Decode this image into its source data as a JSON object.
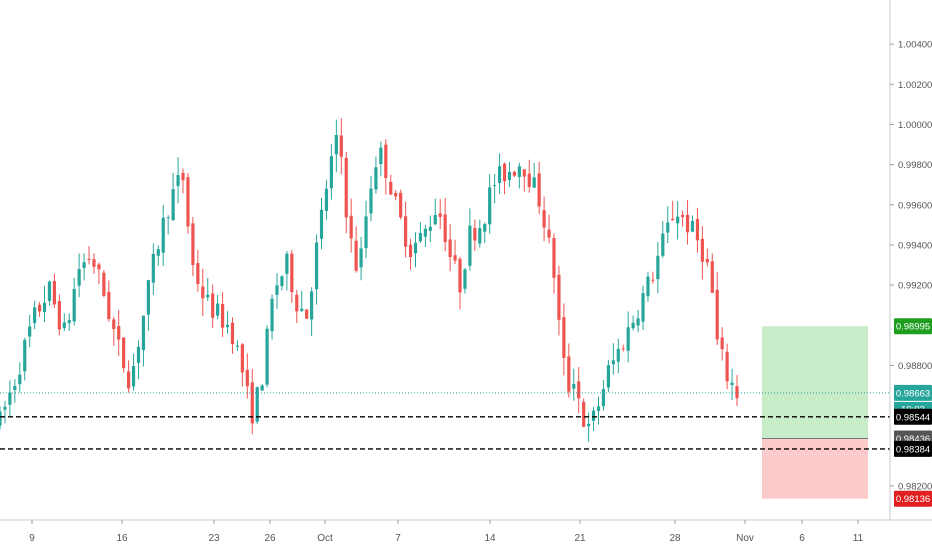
{
  "chart_data": {
    "type": "candlestick",
    "instrument_note": "",
    "y_axis": {
      "ticks": [
        "1.00400",
        "1.00200",
        "1.00000",
        "0.99800",
        "0.99600",
        "0.99400",
        "0.99200",
        "0.98800",
        "0.98200"
      ],
      "tick_values": [
        1.004,
        1.002,
        1.0,
        0.998,
        0.996,
        0.994,
        0.992,
        0.988,
        0.982
      ],
      "range": [
        0.9804,
        1.0057
      ]
    },
    "x_axis": {
      "labels": [
        "9",
        "16",
        "23",
        "26",
        "Oct",
        "7",
        "14",
        "21",
        "28",
        "Nov",
        "6",
        "11"
      ]
    },
    "price_labels": {
      "take_profit": "0.98995",
      "current": "0.98663",
      "countdown": "19:02",
      "level_1": "0.98544",
      "entry": "0.98436",
      "level_2": "0.98384",
      "stop_loss": "0.98136"
    },
    "levels": {
      "take_profit": 0.98995,
      "current": 0.98663,
      "level_1": 0.98544,
      "entry": 0.98436,
      "level_2": 0.98384,
      "stop_loss": 0.98136
    },
    "candle_count": 150,
    "price_path": [
      [
        0,
        0.9852
      ],
      [
        5,
        0.9875
      ],
      [
        10,
        0.9902
      ],
      [
        15,
        0.9918
      ],
      [
        20,
        0.9895
      ],
      [
        24,
        0.9928
      ],
      [
        28,
        0.9935
      ],
      [
        32,
        0.9915
      ],
      [
        36,
        0.989
      ],
      [
        40,
        0.9872
      ],
      [
        44,
        0.9905
      ],
      [
        48,
        0.9938
      ],
      [
        52,
        0.9962
      ],
      [
        56,
        0.9975
      ],
      [
        59,
        0.993
      ],
      [
        63,
        0.9912
      ],
      [
        67,
        0.9905
      ],
      [
        71,
        0.9898
      ],
      [
        74,
        0.988
      ],
      [
        77,
        0.9855
      ],
      [
        80,
        0.987
      ],
      [
        84,
        0.9918
      ],
      [
        88,
        0.993
      ],
      [
        91,
        0.9912
      ],
      [
        94,
        0.9905
      ],
      [
        98,
        0.9948
      ],
      [
        101,
        0.9978
      ],
      [
        104,
        0.9995
      ],
      [
        107,
        0.9945
      ],
      [
        110,
        0.9925
      ],
      [
        113,
        0.9965
      ],
      [
        116,
        0.9988
      ],
      [
        119,
        0.9975
      ],
      [
        122,
        0.9955
      ],
      [
        126,
        0.9938
      ],
      [
        130,
        0.9945
      ],
      [
        134,
        0.996
      ],
      [
        136,
        0.995
      ],
      [
        138,
        0.9935
      ],
      [
        141,
        0.992
      ],
      [
        144,
        0.9945
      ],
      [
        148,
        0.9952
      ],
      [
        151,
        0.997
      ],
      [
        154,
        0.9975
      ],
      [
        157,
        0.9978
      ],
      [
        160,
        0.9982
      ],
      [
        163,
        0.9972
      ],
      [
        166,
        0.996
      ],
      [
        170,
        0.9925
      ],
      [
        172,
        0.989
      ],
      [
        174,
        0.9868
      ],
      [
        176,
        0.9875
      ],
      [
        178,
        0.986
      ],
      [
        180,
        0.9845
      ],
      [
        183,
        0.9858
      ],
      [
        186,
        0.9875
      ],
      [
        189,
        0.9885
      ],
      [
        192,
        0.9895
      ],
      [
        196,
        0.991
      ],
      [
        200,
        0.9925
      ],
      [
        204,
        0.9945
      ],
      [
        207,
        0.9958
      ],
      [
        210,
        0.9952
      ],
      [
        213,
        0.9945
      ],
      [
        216,
        0.9935
      ],
      [
        218,
        0.9922
      ],
      [
        220,
        0.989
      ],
      [
        223,
        0.9875
      ],
      [
        226,
        0.9866
      ]
    ],
    "colors": {
      "up": "#26a69a",
      "down": "#ef5350",
      "take_profit": "#1e9e1e",
      "entry": "#555555",
      "stop_loss": "#e02020",
      "current": "#26a69a",
      "level": "#000000",
      "profit_zone": "#c8ebc8",
      "loss_zone": "#fbcaca",
      "current_line": "#26a69a"
    }
  }
}
